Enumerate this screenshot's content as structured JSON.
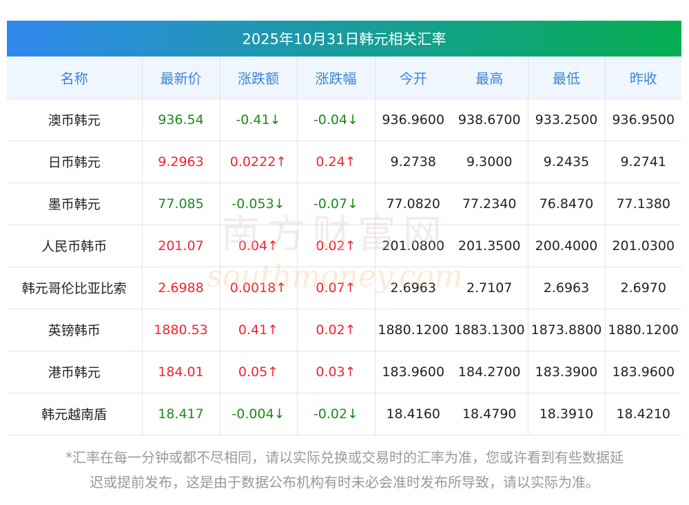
{
  "title": "2025年10月31日韩元相关汇率",
  "headers": [
    "名称",
    "最新价",
    "涨跌额",
    "涨跌幅",
    "今开",
    "最高",
    "最低",
    "昨收"
  ],
  "rows": [
    {
      "name": "澳币韩元",
      "latest": "936.54",
      "change": "-0.41↓",
      "pct": "-0.04↓",
      "open": "936.9600",
      "high": "938.6700",
      "low": "933.2500",
      "prev": "936.9500",
      "dir": "down"
    },
    {
      "name": "日币韩元",
      "latest": "9.2963",
      "change": "0.0222↑",
      "pct": "0.24↑",
      "open": "9.2738",
      "high": "9.3000",
      "low": "9.2435",
      "prev": "9.2741",
      "dir": "up"
    },
    {
      "name": "墨币韩元",
      "latest": "77.085",
      "change": "-0.053↓",
      "pct": "-0.07↓",
      "open": "77.0820",
      "high": "77.2340",
      "low": "76.8470",
      "prev": "77.1380",
      "dir": "down"
    },
    {
      "name": "人民币韩币",
      "latest": "201.07",
      "change": "0.04↑",
      "pct": "0.02↑",
      "open": "201.0800",
      "high": "201.3500",
      "low": "200.4000",
      "prev": "201.0300",
      "dir": "up"
    },
    {
      "name": "韩元哥伦比亚比索",
      "latest": "2.6988",
      "change": "0.0018↑",
      "pct": "0.07↑",
      "open": "2.6963",
      "high": "2.7107",
      "low": "2.6963",
      "prev": "2.6970",
      "dir": "up"
    },
    {
      "name": "英镑韩币",
      "latest": "1880.53",
      "change": "0.41↑",
      "pct": "0.02↑",
      "open": "1880.1200",
      "high": "1883.1300",
      "low": "1873.8800",
      "prev": "1880.1200",
      "dir": "up"
    },
    {
      "name": "港币韩元",
      "latest": "184.01",
      "change": "0.05↑",
      "pct": "0.03↑",
      "open": "183.9600",
      "high": "184.2700",
      "low": "183.3900",
      "prev": "183.9600",
      "dir": "up"
    },
    {
      "name": "韩元越南盾",
      "latest": "18.417",
      "change": "-0.004↓",
      "pct": "-0.02↓",
      "open": "18.4160",
      "high": "18.4790",
      "low": "18.3910",
      "prev": "18.4210",
      "dir": "down"
    }
  ],
  "note_line1": "*汇率在每一分钟或都不尽相同，请以实际兑换或交易时的汇率为准，您或许看到有些数据延",
  "note_line2": "迟或提前发布，这是由于数据公布机构有时未必会准时发布所导致，请以实际为准。",
  "watermark": {
    "cn": "南方财富网",
    "en": "southmoney.com"
  },
  "colors": {
    "up": "#f5222d",
    "down": "#1a8a1a",
    "header_text": "#3a86d8"
  }
}
